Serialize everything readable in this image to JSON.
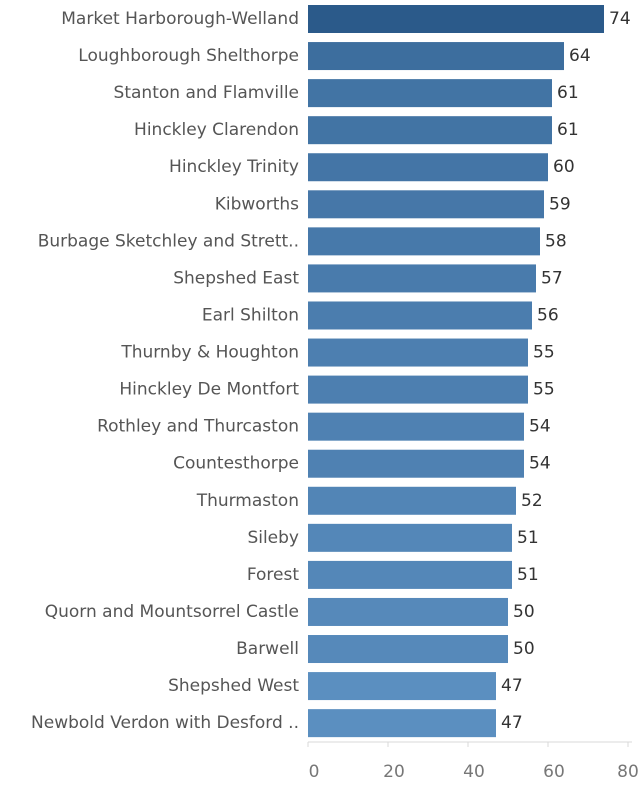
{
  "chart_data": {
    "type": "bar",
    "orientation": "horizontal",
    "categories": [
      "Market Harborough-Welland",
      "Loughborough Shelthorpe",
      "Stanton and Flamville",
      "Hinckley Clarendon",
      "Hinckley Trinity",
      "Kibworths",
      "Burbage Sketchley and Strett..",
      "Shepshed East",
      "Earl Shilton",
      "Thurnby & Houghton",
      "Hinckley De Montfort",
      "Rothley and Thurcaston",
      "Countesthorpe",
      "Thurmaston",
      "Sileby",
      "Forest",
      "Quorn and Mountsorrel Castle",
      "Barwell",
      "Shepshed West",
      "Newbold Verdon with Desford .."
    ],
    "values": [
      74,
      64,
      61,
      61,
      60,
      59,
      58,
      57,
      56,
      55,
      55,
      54,
      54,
      52,
      51,
      51,
      50,
      50,
      47,
      47
    ],
    "xlim": [
      0,
      80
    ],
    "xticks": [
      0,
      20,
      40,
      60,
      80
    ],
    "grid": false,
    "colors": {
      "max": "#2b5a8a",
      "min": "#5b8fc0"
    }
  }
}
